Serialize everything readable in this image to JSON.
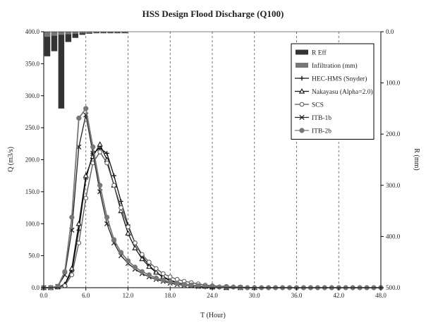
{
  "chart_data": {
    "type": "line",
    "title": "HSS Design Flood Discharge (Q100)",
    "xlabel": "T (Hour)",
    "ylabel": "Q (m3/s)",
    "y2label": "R (mm)",
    "xlim": [
      0,
      48
    ],
    "ylim": [
      0,
      400
    ],
    "y2lim": [
      0,
      500
    ],
    "y2_inverted": true,
    "x_ticks": [
      "0.0",
      "6.0",
      "12.0",
      "18.0",
      "24.0",
      "30.0",
      "36.0",
      "42.0",
      "48.0"
    ],
    "y_ticks": [
      "0.0",
      "50.0",
      "100.0",
      "150.0",
      "200.0",
      "250.0",
      "300.0",
      "350.0",
      "400.0"
    ],
    "y2_ticks": [
      "0.0",
      "100.0",
      "200.0",
      "300.0",
      "400.0",
      "500.0"
    ],
    "grid": true,
    "legend_position": "top-right",
    "bars": [
      {
        "name": "R Eff",
        "color": "#333333",
        "x": [
          0.5,
          1.5,
          2.5,
          3.5,
          4.5,
          5.5,
          6.5,
          7.5,
          8.5,
          9.5,
          10.5,
          11.5
        ],
        "values": [
          48,
          38,
          150,
          20,
          12,
          6,
          4,
          3,
          3,
          3,
          3,
          3
        ]
      },
      {
        "name": "Infiltration (mm)",
        "color": "#777777",
        "x": [
          0.5,
          1.5,
          2.5,
          3.5,
          4.5,
          5.5,
          6.5,
          7.5,
          8.5,
          9.5,
          10.5,
          11.5
        ],
        "values": [
          10,
          8,
          6,
          5,
          4,
          3,
          3,
          2,
          2,
          2,
          2,
          2
        ]
      }
    ],
    "series": [
      {
        "name": "HEC-HMS (Snyder)",
        "color": "#111111",
        "marker": "plus",
        "x": [
          0,
          1,
          2,
          3,
          4,
          5,
          6,
          7,
          8,
          9,
          10,
          11,
          12,
          13,
          14,
          15,
          16,
          17,
          18,
          19,
          20,
          21,
          22,
          23,
          24,
          26,
          28,
          30
        ],
        "y": [
          0,
          0,
          1,
          5,
          25,
          90,
          170,
          210,
          218,
          210,
          175,
          135,
          98,
          70,
          50,
          35,
          24,
          16,
          11,
          7,
          5,
          3,
          2,
          1,
          1,
          0,
          0,
          0
        ]
      },
      {
        "name": "Nakayasu (Alpha=2.0)",
        "color": "#111111",
        "marker": "triangle-open",
        "x": [
          0,
          1,
          2,
          3,
          4,
          5,
          6,
          7,
          8,
          9,
          10,
          11,
          12,
          13,
          14,
          15,
          16,
          17,
          18,
          19,
          20,
          21,
          22,
          23,
          24,
          26,
          28,
          30
        ],
        "y": [
          0,
          0,
          1,
          5,
          30,
          100,
          175,
          205,
          224,
          200,
          160,
          120,
          85,
          62,
          45,
          33,
          24,
          17,
          12,
          8,
          6,
          4,
          3,
          2,
          1,
          0,
          0,
          0
        ]
      },
      {
        "name": "SCS",
        "color": "#555555",
        "marker": "circle-open",
        "x": [
          0,
          1,
          2,
          3,
          4,
          5,
          6,
          7,
          8,
          9,
          10,
          11,
          12,
          13,
          14,
          15,
          16,
          17,
          18,
          19,
          20,
          21,
          22,
          23,
          24,
          26,
          28,
          30,
          32,
          34
        ],
        "y": [
          0,
          0,
          1,
          3,
          20,
          70,
          140,
          195,
          212,
          195,
          160,
          125,
          95,
          70,
          52,
          40,
          30,
          22,
          17,
          13,
          10,
          8,
          6,
          4,
          3,
          2,
          1,
          0,
          0,
          0
        ]
      },
      {
        "name": "ITB-1b",
        "color": "#222222",
        "marker": "x",
        "x": [
          0,
          1,
          2,
          3,
          4,
          5,
          6,
          7,
          8,
          9,
          10,
          11,
          12,
          13,
          14,
          15,
          16,
          17,
          18,
          19,
          20,
          21,
          22,
          24,
          26,
          28
        ],
        "y": [
          0,
          0,
          2,
          20,
          90,
          220,
          270,
          210,
          150,
          100,
          70,
          50,
          38,
          29,
          22,
          17,
          13,
          10,
          7,
          5,
          4,
          3,
          2,
          1,
          0,
          0
        ]
      },
      {
        "name": "ITB-2b",
        "color": "#777777",
        "marker": "circle-filled",
        "x": [
          0,
          1,
          2,
          3,
          4,
          5,
          6,
          7,
          8,
          9,
          10,
          11,
          12,
          13,
          14,
          15,
          16,
          17,
          18,
          19,
          20,
          21,
          22,
          23,
          24,
          25,
          26,
          27,
          28,
          29,
          30,
          31,
          32,
          33,
          34,
          35,
          36,
          37,
          38,
          39,
          40,
          41,
          42,
          43,
          44,
          45,
          46,
          47,
          48
        ],
        "y": [
          0,
          0,
          2,
          25,
          110,
          265,
          280,
          220,
          160,
          110,
          75,
          55,
          42,
          32,
          25,
          20,
          15,
          12,
          9,
          7,
          5,
          4,
          3,
          2,
          2,
          1,
          1,
          1,
          0,
          0,
          0,
          0,
          0,
          0,
          0,
          0,
          0,
          0,
          0,
          0,
          0,
          0,
          0,
          0,
          0,
          0,
          0,
          0,
          0
        ]
      }
    ]
  }
}
